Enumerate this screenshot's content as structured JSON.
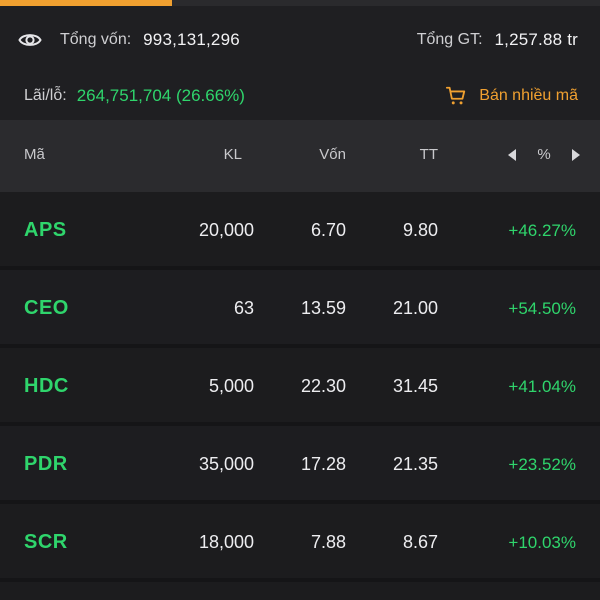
{
  "summary": {
    "total_capital_label": "Tổng vốn:",
    "total_capital_value": "993,131,296",
    "total_value_label": "Tổng GT:",
    "total_value_value": "1,257.88 tr",
    "pnl_label": "Lãi/lỗ:",
    "pnl_value": "264,751,704 (26.66%)",
    "sell_many_label": "Bán nhiều mã"
  },
  "table": {
    "headers": {
      "symbol": "Mã",
      "volume": "KL",
      "cost": "Vốn",
      "market": "TT",
      "percent": "%"
    },
    "rows": [
      {
        "symbol": "APS",
        "volume": "20,000",
        "cost": "6.70",
        "market": "9.80",
        "percent": "+46.27%"
      },
      {
        "symbol": "CEO",
        "volume": "63",
        "cost": "13.59",
        "market": "21.00",
        "percent": "+54.50%"
      },
      {
        "symbol": "HDC",
        "volume": "5,000",
        "cost": "22.30",
        "market": "31.45",
        "percent": "+41.04%"
      },
      {
        "symbol": "PDR",
        "volume": "35,000",
        "cost": "17.28",
        "market": "21.35",
        "percent": "+23.52%"
      },
      {
        "symbol": "SCR",
        "volume": "18,000",
        "cost": "7.88",
        "market": "8.67",
        "percent": "+10.03%"
      }
    ]
  },
  "icons": {
    "visibility": "eye-icon",
    "cart": "cart-icon",
    "prev": "triangle-left-icon",
    "next": "triangle-right-icon"
  },
  "colors": {
    "accent": "#f0a030",
    "gain": "#2fd56c",
    "background": "#1c1c1e",
    "header_bg": "#2b2b2e"
  }
}
